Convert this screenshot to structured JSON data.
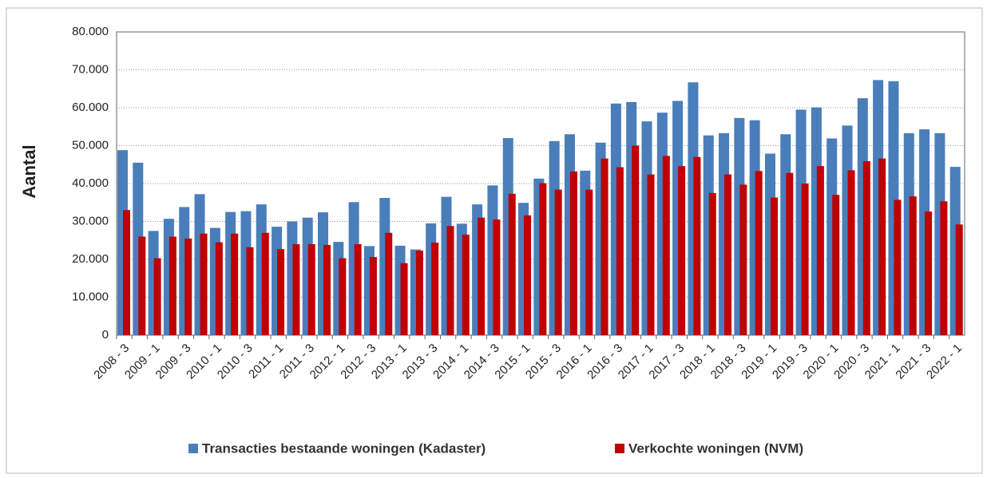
{
  "chart_data": {
    "type": "bar",
    "y_label": "Aantal",
    "categories": [
      "2008 - 3",
      null,
      "2009 - 1",
      null,
      "2009 - 3",
      null,
      "2010 - 1",
      null,
      "2010 - 3",
      null,
      "2011 - 1",
      null,
      "2011 - 3",
      null,
      "2012 - 1",
      null,
      "2012 - 3",
      null,
      "2013 - 1",
      null,
      "2013 - 3",
      null,
      "2014 - 1",
      null,
      "2014 - 3",
      null,
      "2015 - 1",
      null,
      "2015 - 3",
      null,
      "2016 - 1",
      null,
      "2016 - 3",
      null,
      "2017 - 1",
      null,
      "2017 - 3",
      null,
      "2018 - 1",
      null,
      "2018 - 3",
      null,
      "2019 - 1",
      null,
      "2019 - 3",
      null,
      "2020 - 1",
      null,
      "2020 - 3",
      null,
      "2021 - 1",
      null,
      "2021 - 3",
      null,
      "2022 - 1"
    ],
    "series": [
      {
        "name": "Transacties bestaande woningen (Kadaster)",
        "color": "#4a7ebb",
        "values": [
          48800,
          45500,
          27500,
          30700,
          33800,
          37200,
          28300,
          32500,
          32700,
          34500,
          28600,
          30000,
          31000,
          32400,
          24600,
          35100,
          23500,
          36200,
          23600,
          22600,
          29500,
          36500,
          29400,
          34500,
          39500,
          52000,
          34900,
          41300,
          51200,
          53000,
          43400,
          50800,
          61100,
          61500,
          56400,
          58700,
          61800,
          66700,
          52700,
          53300,
          57300,
          56700,
          47900,
          53000,
          59500,
          60100,
          51900,
          55300,
          62500,
          67300,
          67000,
          53300,
          54300,
          53300,
          44400
        ]
      },
      {
        "name": "Verkochte woningen (NVM)",
        "color": "#c00000",
        "values": [
          33000,
          26000,
          20300,
          26000,
          25500,
          26800,
          24500,
          26800,
          23200,
          27000,
          22700,
          24000,
          24000,
          23800,
          20300,
          24000,
          20600,
          27000,
          19000,
          22300,
          24400,
          28800,
          26500,
          31000,
          30500,
          37300,
          31600,
          40100,
          38400,
          43200,
          38400,
          46600,
          44300,
          50000,
          42400,
          47300,
          44600,
          47000,
          37500,
          42400,
          39700,
          43300,
          36300,
          42800,
          40000,
          44600,
          37000,
          43500,
          45900,
          46600,
          35700,
          36600,
          32600,
          35300,
          29200
        ]
      }
    ],
    "ylim": [
      0,
      80000
    ],
    "yticks": [
      0,
      {
        "value": 10000,
        "label": "10.000"
      },
      {
        "value": 20000,
        "label": "20.000"
      },
      {
        "value": 30000,
        "label": "30.000"
      },
      {
        "value": 40000,
        "label": "40.000"
      },
      {
        "value": 50000,
        "label": "50.000"
      },
      {
        "value": 60000,
        "label": "60.000"
      },
      {
        "value": 70000,
        "label": "70.000"
      },
      {
        "value": 80000,
        "label": "80.000"
      }
    ],
    "grid": true,
    "legend": "bottom"
  }
}
